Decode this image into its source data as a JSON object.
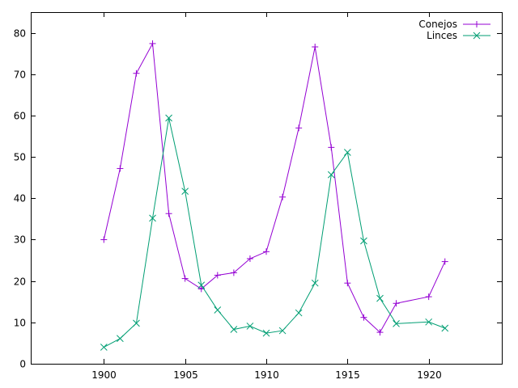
{
  "chart_data": {
    "type": "line",
    "title": "",
    "xlabel": "",
    "ylabel": "",
    "xlim": [
      1895.5,
      1924.5
    ],
    "ylim": [
      0,
      85
    ],
    "xticks": [
      1900,
      1905,
      1910,
      1915,
      1920
    ],
    "yticks": [
      0,
      10,
      20,
      30,
      40,
      50,
      60,
      70,
      80
    ],
    "grid": false,
    "legend_position": "top-right",
    "series": [
      {
        "name": "Conejos",
        "color": "#9400D3",
        "marker": "plus",
        "x": [
          1900,
          1901,
          1902,
          1903,
          1904,
          1905,
          1906,
          1907,
          1908,
          1909,
          1910,
          1911,
          1912,
          1913,
          1914,
          1915,
          1916,
          1917,
          1918,
          1920,
          1921
        ],
        "y": [
          30,
          47.2,
          70.2,
          77.4,
          36.3,
          20.6,
          18.1,
          21.4,
          22,
          25.4,
          27.1,
          40.3,
          57,
          76.6,
          52.3,
          19.5,
          11.2,
          7.6,
          14.6,
          16.2,
          24.7
        ]
      },
      {
        "name": "Linces",
        "color": "#009E73",
        "marker": "cross",
        "x": [
          1900,
          1901,
          1902,
          1903,
          1904,
          1905,
          1906,
          1907,
          1908,
          1909,
          1910,
          1911,
          1912,
          1913,
          1914,
          1915,
          1916,
          1917,
          1918,
          1920,
          1921
        ],
        "y": [
          4,
          6.1,
          9.8,
          35.2,
          59.4,
          41.7,
          19,
          13,
          8.3,
          9.1,
          7.4,
          8,
          12.3,
          19.5,
          45.7,
          51.1,
          29.7,
          15.8,
          9.7,
          10.1,
          8.6
        ]
      }
    ]
  }
}
